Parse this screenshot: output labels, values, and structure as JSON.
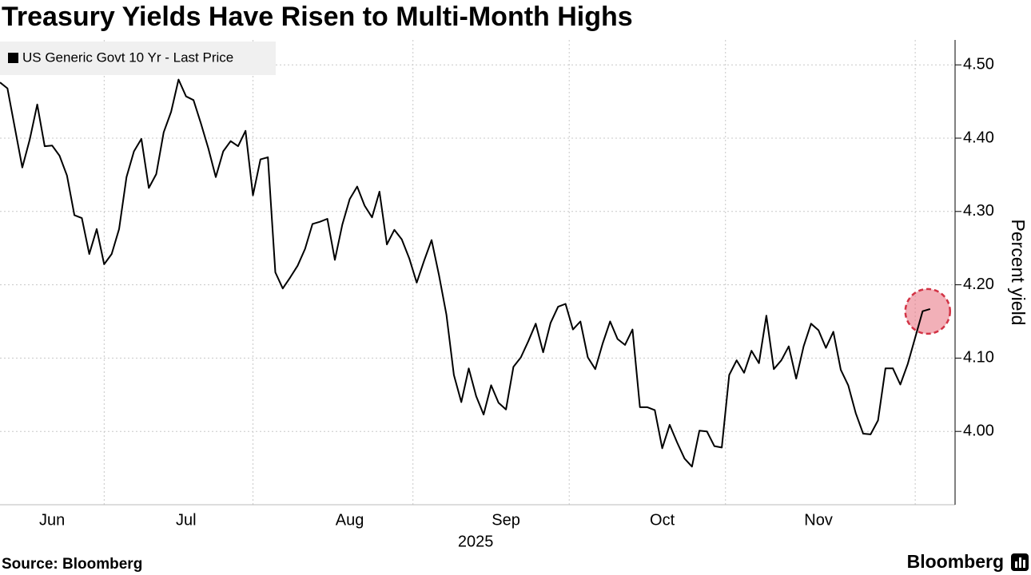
{
  "chart_data": {
    "type": "line",
    "title": "Treasury Yields Have Risen to Multi-Month Highs",
    "source": "Source: Bloomberg",
    "brand": "Bloomberg",
    "y_axis_label": "Percent yield",
    "x_year_label": "2025",
    "categories": [
      null,
      null,
      null,
      null,
      null,
      null,
      null,
      "Jun",
      null,
      null,
      null,
      null,
      null,
      null,
      null,
      null,
      null,
      null,
      null,
      null,
      null,
      null,
      null,
      null,
      null,
      "Jul",
      null,
      null,
      null,
      null,
      null,
      null,
      null,
      null,
      null,
      null,
      null,
      null,
      null,
      null,
      null,
      null,
      null,
      null,
      null,
      null,
      null,
      "Aug",
      null,
      null,
      null,
      null,
      null,
      null,
      null,
      null,
      null,
      null,
      null,
      null,
      null,
      null,
      null,
      null,
      null,
      null,
      null,
      null,
      "Sep",
      null,
      null,
      null,
      null,
      null,
      null,
      null,
      null,
      null,
      null,
      null,
      null,
      null,
      null,
      null,
      null,
      null,
      null,
      null,
      null,
      "Oct",
      null,
      null,
      null,
      null,
      null,
      null,
      null,
      null,
      null,
      null,
      null,
      null,
      null,
      null,
      null,
      null,
      null,
      null,
      null,
      null,
      "Nov",
      null,
      null,
      null,
      null,
      null,
      null,
      null,
      null,
      null,
      null,
      null,
      null,
      null,
      null,
      null
    ],
    "series": [
      {
        "name": "US Generic Govt 10 Yr - Last Price",
        "color": "#000000",
        "values": [
          4.476,
          4.468,
          4.414,
          4.36,
          4.398,
          4.446,
          4.389,
          4.39,
          4.376,
          4.349,
          4.295,
          4.291,
          4.242,
          4.276,
          4.228,
          4.242,
          4.276,
          4.347,
          4.382,
          4.399,
          4.332,
          4.351,
          4.408,
          4.436,
          4.48,
          4.457,
          4.452,
          4.42,
          4.386,
          4.347,
          4.382,
          4.396,
          4.389,
          4.41,
          4.322,
          4.371,
          4.374,
          4.217,
          4.195,
          4.21,
          4.226,
          4.249,
          4.283,
          4.286,
          4.29,
          4.234,
          4.282,
          4.317,
          4.334,
          4.308,
          4.292,
          4.327,
          4.255,
          4.275,
          4.262,
          4.236,
          4.203,
          4.233,
          4.261,
          4.213,
          4.159,
          4.077,
          4.04,
          4.086,
          4.048,
          4.023,
          4.063,
          4.039,
          4.03,
          4.088,
          4.101,
          4.123,
          4.147,
          4.108,
          4.148,
          4.17,
          4.174,
          4.139,
          4.15,
          4.101,
          4.085,
          4.12,
          4.15,
          4.126,
          4.118,
          4.139,
          4.033,
          4.033,
          4.029,
          3.977,
          4.009,
          3.985,
          3.963,
          3.952,
          4.001,
          4.0,
          3.98,
          3.978,
          4.077,
          4.097,
          4.08,
          4.11,
          4.093,
          4.158,
          4.085,
          4.097,
          4.116,
          4.072,
          4.116,
          4.147,
          4.138,
          4.114,
          4.136,
          4.084,
          4.063,
          4.025,
          3.997,
          3.996,
          4.015,
          4.086,
          4.086,
          4.064,
          4.092,
          4.128,
          4.164,
          4.167
        ]
      }
    ],
    "ylim": [
      3.9,
      4.534
    ],
    "yticks": [
      {
        "value": 4.0,
        "label": "4.00"
      },
      {
        "value": 4.1,
        "label": "4.10"
      },
      {
        "value": 4.2,
        "label": "4.20"
      },
      {
        "value": 4.3,
        "label": "4.30"
      },
      {
        "value": 4.4,
        "label": "4.40"
      },
      {
        "value": 4.5,
        "label": "4.50"
      }
    ],
    "grid": true,
    "highlight_color": "#e8707e"
  }
}
